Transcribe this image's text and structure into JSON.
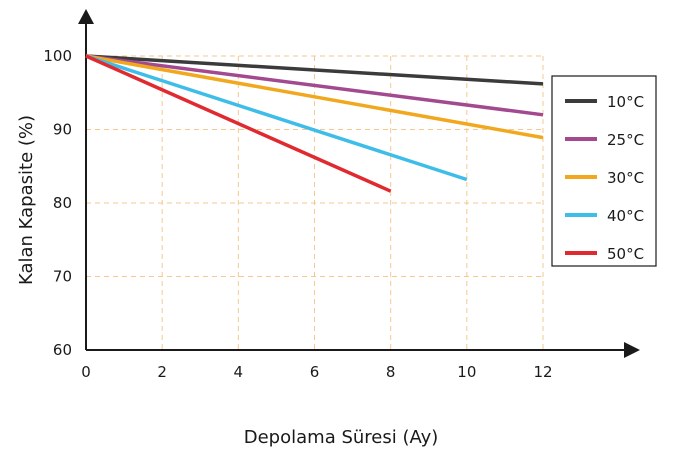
{
  "chart_data": {
    "type": "line",
    "xlabel": "Depolama Süresi (Ay)",
    "ylabel": "Kalan Kapasite (%)",
    "x_ticks": [
      "0",
      "2",
      "4",
      "6",
      "8",
      "10",
      "12"
    ],
    "y_ticks": [
      "60",
      "70",
      "80",
      "90",
      "100"
    ],
    "xlim": [
      0,
      12
    ],
    "ylim": [
      60,
      100
    ],
    "grid": true,
    "legend_position": "right",
    "series": [
      {
        "name": "10°C",
        "color": "#3b3b3b",
        "points": [
          [
            0,
            100
          ],
          [
            12,
            96.2
          ]
        ]
      },
      {
        "name": "25°C",
        "color": "#a2498f",
        "points": [
          [
            0,
            100
          ],
          [
            12,
            92
          ]
        ]
      },
      {
        "name": "30°C",
        "color": "#f2a81e",
        "points": [
          [
            0,
            100
          ],
          [
            12,
            88.9
          ]
        ]
      },
      {
        "name": "40°C",
        "color": "#3dbde8",
        "points": [
          [
            0,
            100
          ],
          [
            10,
            83.2
          ]
        ]
      },
      {
        "name": "50°C",
        "color": "#e02a2f",
        "points": [
          [
            0,
            100
          ],
          [
            8,
            81.6
          ]
        ]
      }
    ]
  }
}
